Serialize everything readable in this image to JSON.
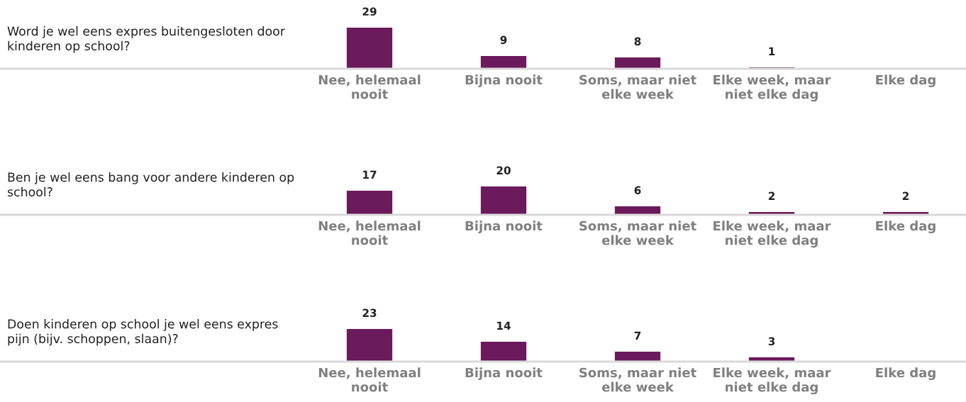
{
  "chart_data": [
    {
      "type": "bar",
      "title": "Word je wel eens expres buitengesloten door kinderen op school?",
      "categories": [
        "Nee, helemaal nooit",
        "Bijna nooit",
        "Soms, maar niet elke week",
        "Elke week, maar niet elke dag",
        "Elke dag"
      ],
      "values": [
        29,
        9,
        8,
        1,
        null
      ],
      "color": "#6b1a5b",
      "data_labels": true,
      "grid": false,
      "legend": false,
      "tick_labels": "x"
    },
    {
      "type": "bar",
      "title": "Ben je wel eens bang voor andere kinderen op school?",
      "categories": [
        "Nee, helemaal nooit",
        "Bijna nooit",
        "Soms, maar niet elke week",
        "Elke week, maar niet elke dag",
        "Elke dag"
      ],
      "values": [
        17,
        20,
        6,
        2,
        2
      ],
      "color": "#6b1a5b",
      "data_labels": true,
      "grid": false,
      "legend": false,
      "tick_labels": "x"
    },
    {
      "type": "bar",
      "title": "Doen kinderen op school je wel eens expres pijn (bijv. schoppen, slaan)?",
      "categories": [
        "Nee, helemaal nooit",
        "Bijna nooit",
        "Soms, maar niet elke week",
        "Elke week, maar niet elke dag",
        "Elke dag"
      ],
      "values": [
        23,
        14,
        7,
        3,
        null
      ],
      "color": "#6b1a5b",
      "data_labels": true,
      "grid": false,
      "legend": false,
      "tick_labels": "x"
    }
  ]
}
